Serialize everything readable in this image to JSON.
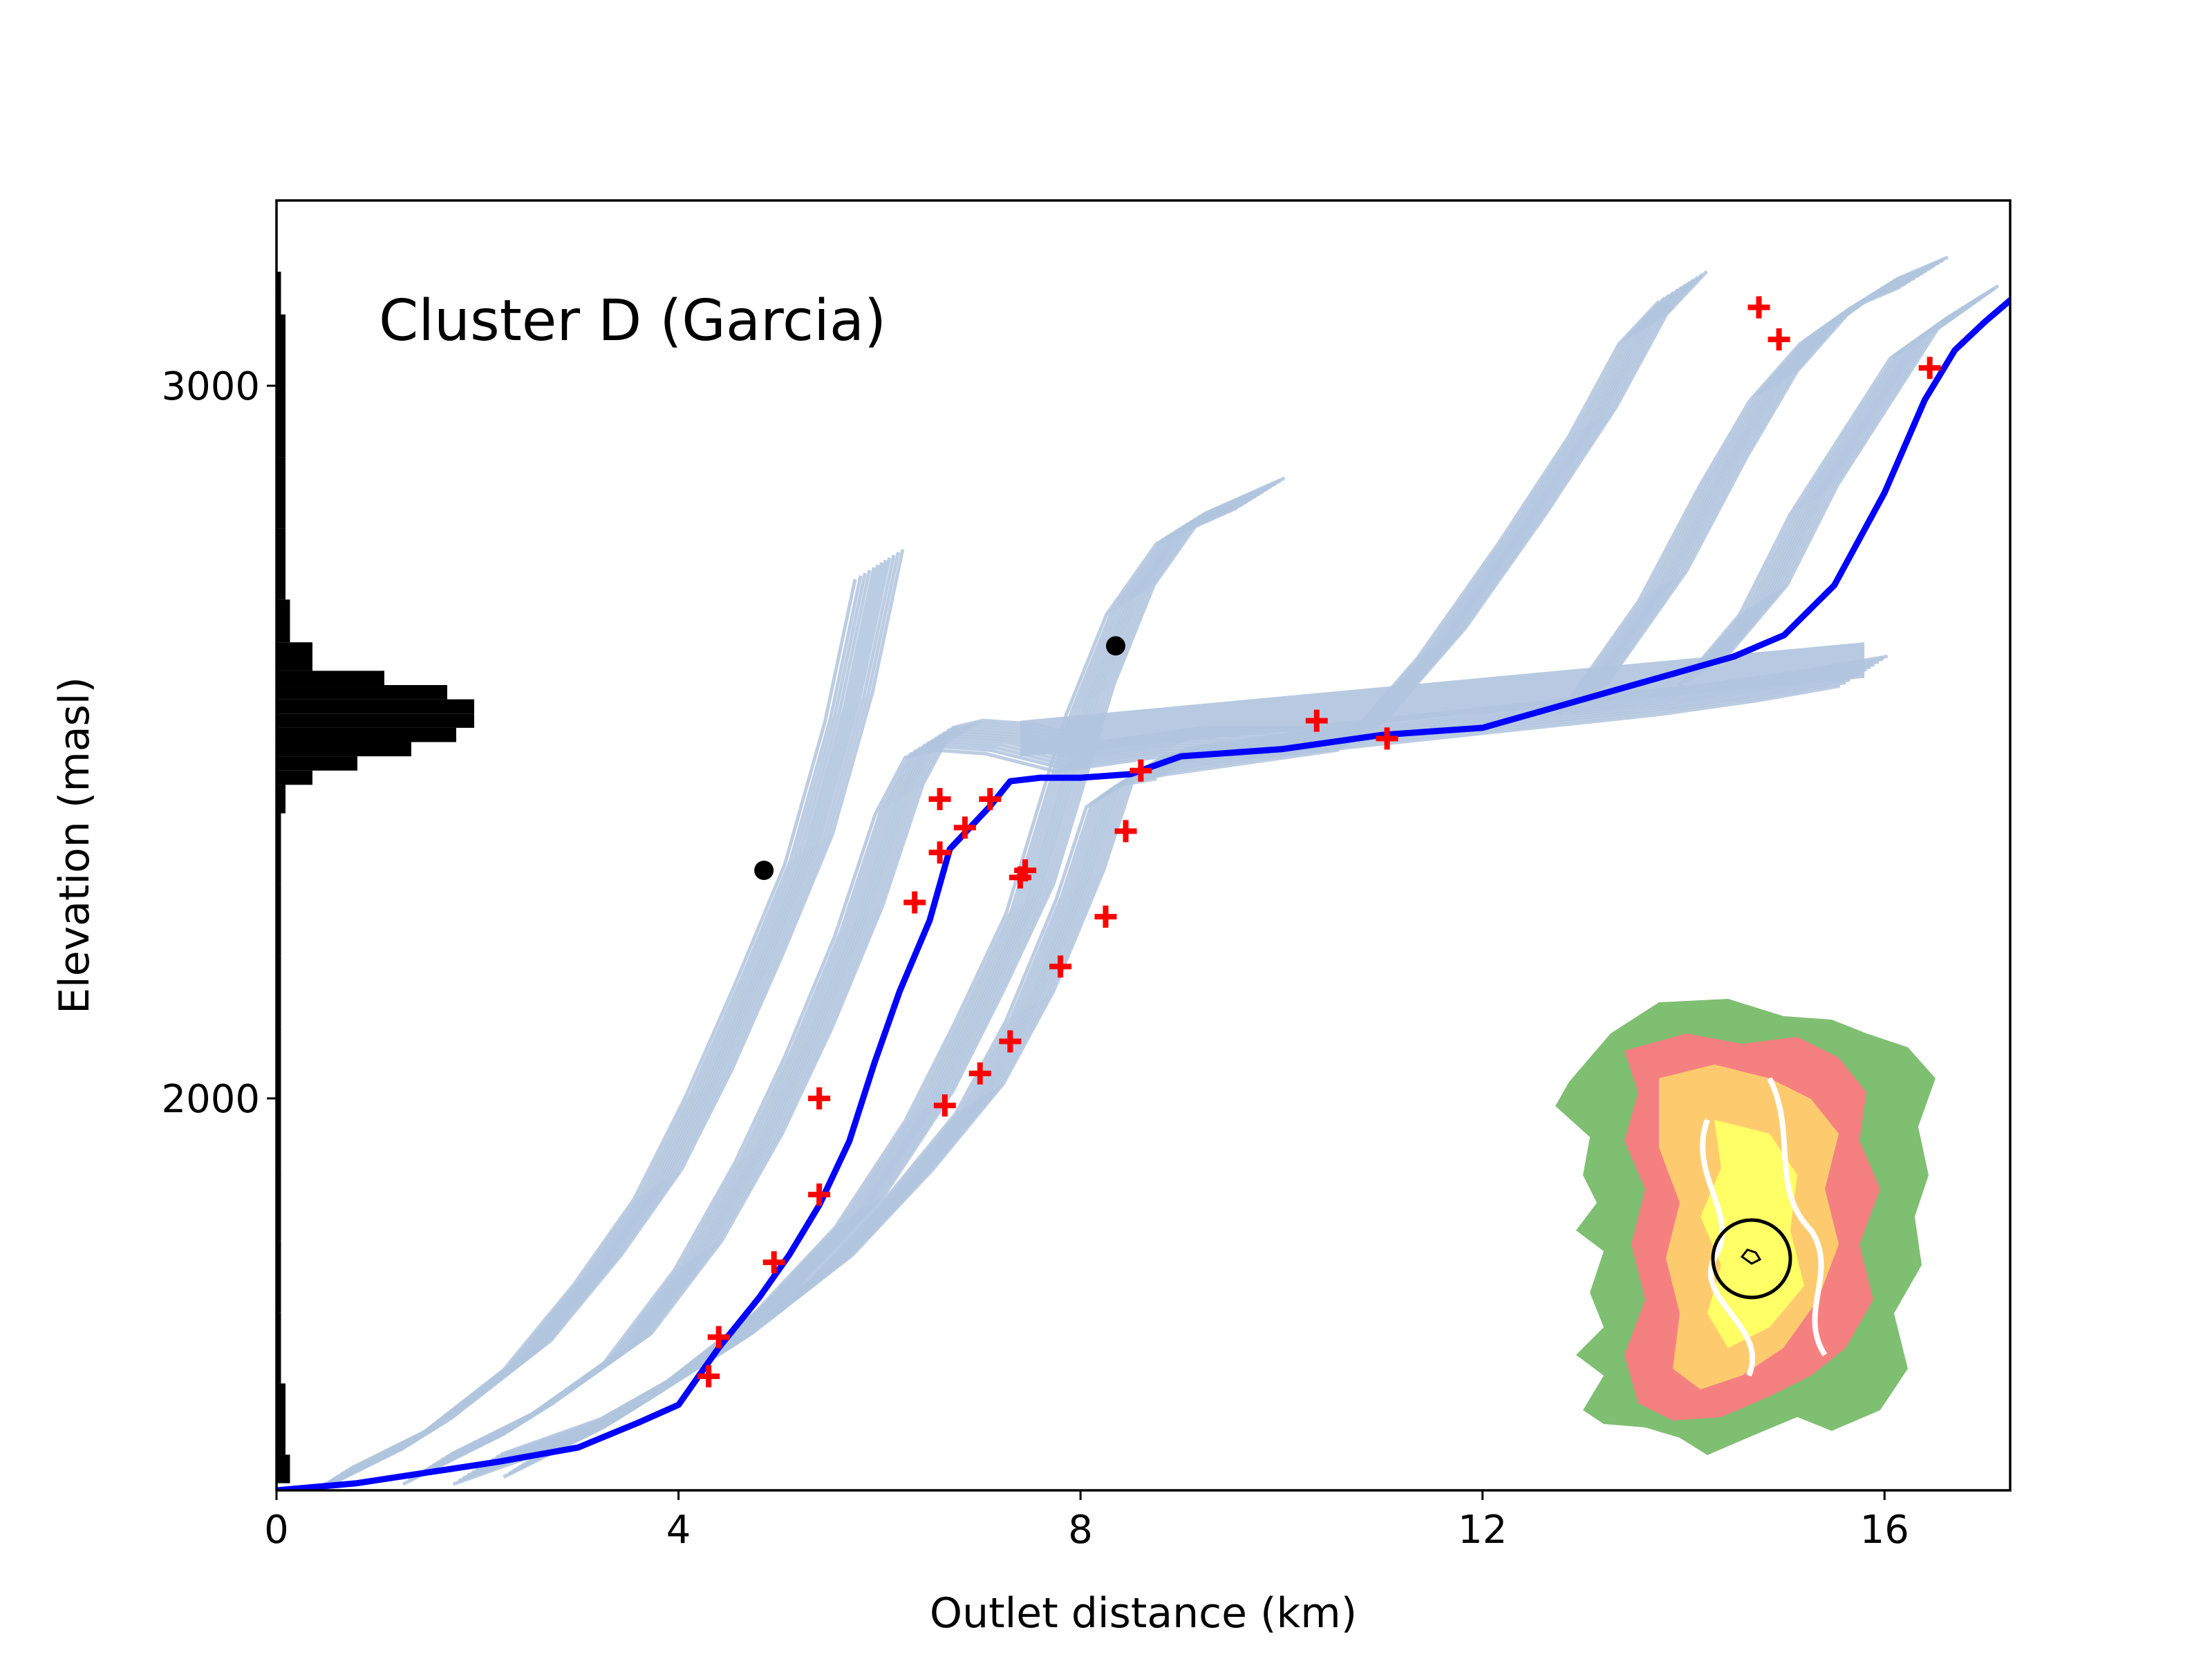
{
  "chart_data": {
    "type": "line",
    "title": "Cluster D (Garcia)",
    "xlabel": "Outlet distance (km)",
    "ylabel": "Elevation (masl)",
    "xlim": [
      0,
      17.25
    ],
    "ylim": [
      1450,
      3260
    ],
    "xticks": [
      0,
      4,
      8,
      12,
      16
    ],
    "yticks": [
      2000,
      3000
    ],
    "xtick_labels": [
      "0",
      "4",
      "8",
      "12",
      "16"
    ],
    "ytick_labels": [
      "2000",
      "3000"
    ],
    "colors": {
      "flowpaths": "#b0c4de",
      "mean_profile": "#0000ff",
      "red_markers": "#ff0000",
      "black_markers": "#000000",
      "histogram": "#000000"
    },
    "series": [
      {
        "name": "main profile",
        "x": [
          0,
          0.8,
          1.5,
          2.2,
          3.0,
          3.6,
          4.0,
          4.2,
          4.4,
          4.8,
          5.1,
          5.4,
          5.7,
          5.95,
          6.2,
          6.5,
          6.7,
          6.9,
          7.1,
          7.3,
          7.6,
          8.0,
          8.5,
          9.0,
          10.0,
          11.0,
          12.0,
          12.5,
          13.0,
          13.5,
          14.0,
          14.5,
          15.0,
          15.5,
          16.0,
          16.4,
          16.7,
          17.0,
          17.25
        ],
        "y": [
          1450,
          1460,
          1475,
          1490,
          1510,
          1545,
          1570,
          1610,
          1650,
          1720,
          1780,
          1850,
          1940,
          2050,
          2150,
          2250,
          2350,
          2380,
          2410,
          2445,
          2450,
          2450,
          2455,
          2480,
          2490,
          2510,
          2520,
          2540,
          2560,
          2580,
          2600,
          2620,
          2650,
          2720,
          2850,
          2980,
          3050,
          3090,
          3120
        ]
      }
    ],
    "flowpath_groups": [
      {
        "x": [
          0.5,
          1.5,
          2.5,
          3.2,
          3.8,
          4.3,
          4.8,
          5.3,
          5.7,
          6.0
        ],
        "y": [
          1460,
          1530,
          1640,
          1760,
          1880,
          2020,
          2180,
          2350,
          2550,
          2750
        ]
      },
      {
        "x": [
          1.5,
          2.5,
          3.5,
          4.2,
          4.8,
          5.3,
          5.8,
          6.2,
          6.5,
          6.8,
          7.3,
          8.0,
          9.0,
          10.0,
          11.0,
          12.0,
          13.0,
          14.0,
          15.0,
          15.8
        ],
        "y": [
          1480,
          1550,
          1650,
          1780,
          1930,
          2080,
          2250,
          2420,
          2500,
          2510,
          2505,
          2480,
          2500,
          2500,
          2515,
          2530,
          2545,
          2560,
          2580,
          2600
        ]
      },
      {
        "x": [
          2.0,
          3.0,
          4.0,
          5.0,
          5.8,
          6.5,
          7.0,
          7.5,
          7.8,
          8.1,
          8.5,
          9.0,
          9.8
        ],
        "y": [
          1480,
          1530,
          1610,
          1720,
          1840,
          1990,
          2130,
          2280,
          2420,
          2560,
          2700,
          2800,
          2850
        ]
      },
      {
        "x": [
          2.5,
          3.5,
          4.5,
          5.5,
          6.3,
          7.0,
          7.5,
          8.0,
          8.3,
          8.6,
          9.0
        ],
        "y": [
          1490,
          1560,
          1650,
          1760,
          1880,
          2000,
          2130,
          2300,
          2430,
          2460,
          2470
        ]
      },
      {
        "x": [
          8.8,
          9.8,
          10.8,
          11.6,
          12.4,
          13.1,
          13.6,
          14.0
        ],
        "y": [
          2470,
          2490,
          2510,
          2640,
          2800,
          2950,
          3080,
          3140
        ]
      },
      {
        "x": [
          13.0,
          13.8,
          14.4,
          14.9,
          15.4,
          15.9,
          16.4
        ],
        "y": [
          2560,
          2720,
          2880,
          3000,
          3080,
          3130,
          3160
        ]
      },
      {
        "x": [
          14.2,
          14.8,
          15.3,
          15.8,
          16.3,
          16.9
        ],
        "y": [
          2600,
          2700,
          2840,
          2950,
          3060,
          3120
        ]
      }
    ],
    "red_markers": {
      "x": [
        4.3,
        4.4,
        4.95,
        5.4,
        5.4,
        6.35,
        6.6,
        6.6,
        6.65,
        6.85,
        7.1,
        7.0,
        7.3,
        7.4,
        7.45,
        7.8,
        8.25,
        8.45,
        8.6,
        10.35,
        11.05,
        14.75,
        14.95,
        16.45
      ],
      "y": [
        1610,
        1665,
        1770,
        1865,
        2000,
        2275,
        2345,
        2420,
        1990,
        2380,
        2420,
        2035,
        2080,
        2310,
        2320,
        2185,
        2255,
        2375,
        2460,
        2530,
        2505,
        3110,
        3065,
        3025
      ]
    },
    "black_markers": {
      "x": [
        4.85,
        8.35
      ],
      "y": [
        2320,
        2635
      ]
    },
    "elevation_histogram": {
      "bins": [
        1460,
        1500,
        1600,
        1700,
        1800,
        1900,
        2000,
        2100,
        2200,
        2300,
        2400,
        2440,
        2460,
        2480,
        2500,
        2520,
        2540,
        2560,
        2580,
        2600,
        2640,
        2700,
        2800,
        2900,
        3000,
        3100,
        3130
      ],
      "counts": [
        3,
        2,
        1,
        1,
        1,
        1,
        1,
        1,
        1,
        1,
        2,
        8,
        18,
        30,
        40,
        44,
        44,
        38,
        24,
        8,
        3,
        2,
        2,
        2,
        2,
        1,
        1
      ]
    },
    "inset": {
      "type": "map",
      "description": "catchment location map with highlighted circle"
    }
  }
}
